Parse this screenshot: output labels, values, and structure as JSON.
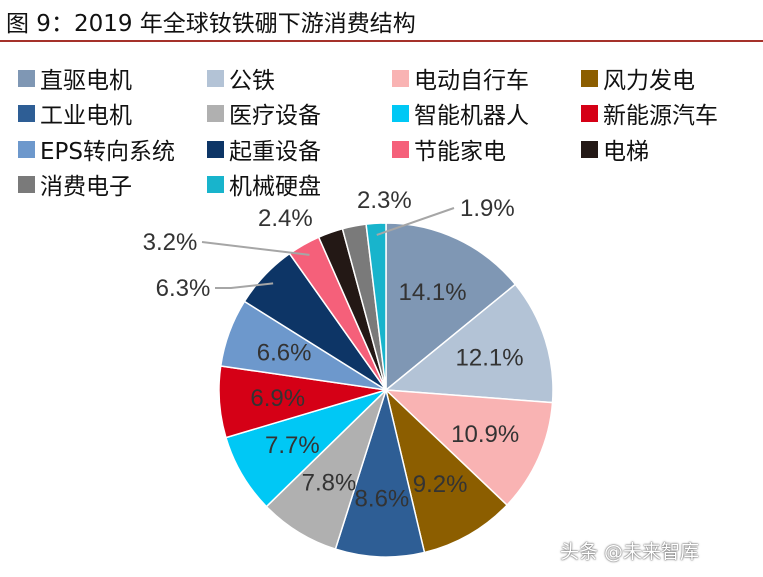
{
  "title": "图 9：2019 年全球钕铁硼下游消费结构",
  "watermark": "头条 @未来智库",
  "chart_data": {
    "type": "pie",
    "title": "图 9：2019 年全球钕铁硼下游消费结构",
    "legend_position": "top",
    "categories": [
      "直驱电机",
      "公铁",
      "电动自行车",
      "风力发电",
      "工业电机",
      "医疗设备",
      "智能机器人",
      "新能源汽车",
      "EPS转向系统",
      "起重设备",
      "节能家电",
      "电梯",
      "消费电子",
      "机械硬盘"
    ],
    "values": [
      14.1,
      12.1,
      10.9,
      9.2,
      8.6,
      7.8,
      7.7,
      6.9,
      6.6,
      6.3,
      3.2,
      2.4,
      2.3,
      1.9
    ],
    "labels": [
      "14.1%",
      "12.1%",
      "10.9%",
      "9.2%",
      "8.6%",
      "7.8%",
      "7.7%",
      "6.9%",
      "6.6%",
      "6.3%",
      "3.2%",
      "2.4%",
      "2.3%",
      "1.9%"
    ],
    "colors": [
      "#7f97b4",
      "#b3c3d6",
      "#f9b3b3",
      "#8c5e00",
      "#2e5e95",
      "#b0b0b0",
      "#00c8f5",
      "#d50016",
      "#6d98cc",
      "#0d3566",
      "#f5607a",
      "#231815",
      "#7a7a7a",
      "#18b4cc"
    ]
  }
}
